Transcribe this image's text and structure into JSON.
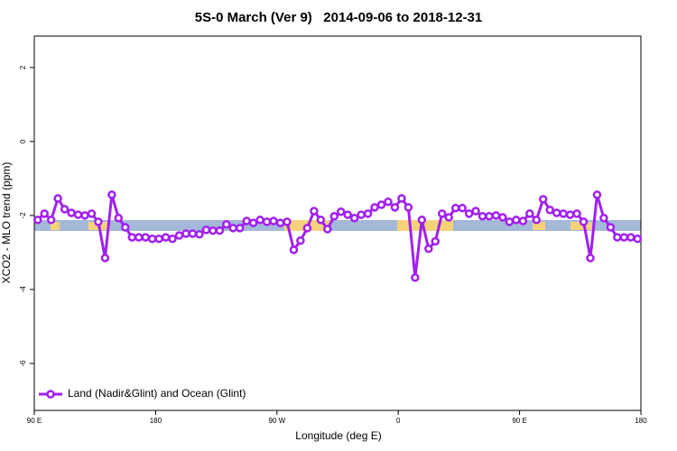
{
  "chart_data": {
    "type": "line",
    "title": "5S-0 March (Ver 9)   2014-09-06 to 2018-12-31",
    "x_label": "Longitude (deg E)",
    "y_label": "XCO2 - MLO trend (ppm)",
    "xlim": [
      90,
      540
    ],
    "ylim": [
      -7.27,
      2.85
    ],
    "xticks": [
      {
        "value": 90,
        "label": "90 E"
      },
      180,
      {
        "value": 270,
        "label": "90 W"
      },
      {
        "value": 360,
        "label": "0"
      },
      {
        "value": 450,
        "label": "90 E"
      },
      {
        "value": 540,
        "label": "180"
      }
    ],
    "yticks": [
      -6,
      -4,
      -2,
      0,
      2
    ],
    "legend": "bottom-left",
    "x": [
      92.5,
      97.5,
      102.5,
      107.5,
      112.5,
      117.5,
      122.5,
      127.5,
      132.5,
      137.5,
      142.5,
      147.5,
      152.5,
      157.5,
      162.5,
      167.5,
      172.5,
      177.5,
      182.5,
      187.5,
      192.5,
      197.5,
      202.5,
      207.5,
      212.5,
      217.5,
      222.5,
      227.5,
      232.5,
      237.5,
      242.5,
      247.5,
      252.5,
      257.5,
      262.5,
      267.5,
      272.5,
      277.5,
      282.5,
      287.5,
      292.5,
      297.5,
      302.5,
      307.5,
      312.5,
      317.5,
      322.5,
      327.5,
      332.5,
      337.5,
      342.5,
      347.5,
      352.5,
      357.5,
      362.5,
      367.5,
      372.5,
      377.5,
      382.5,
      387.5,
      392.5,
      397.5,
      402.5,
      407.5,
      412.5,
      417.5,
      422.5,
      427.5,
      432.5,
      437.5,
      442.5,
      447.5,
      452.5,
      457.5,
      462.5,
      467.5,
      472.5,
      477.5,
      482.5,
      487.5,
      492.5,
      497.5,
      502.5,
      507.5,
      512.5,
      517.5,
      522.5,
      527.5,
      532.5,
      537.5
    ],
    "series": [
      {
        "name": "Land (Nadir&Glint) and Ocean (Glint)",
        "color": "#a020f0",
        "values": [
          -2.12,
          -1.95,
          -2.12,
          -1.54,
          -1.83,
          -1.93,
          -1.98,
          -2.0,
          -1.95,
          -2.17,
          -3.15,
          -1.44,
          -2.07,
          -2.32,
          -2.59,
          -2.59,
          -2.59,
          -2.63,
          -2.63,
          -2.59,
          -2.63,
          -2.54,
          -2.49,
          -2.49,
          -2.51,
          -2.39,
          -2.41,
          -2.41,
          -2.24,
          -2.34,
          -2.34,
          -2.15,
          -2.2,
          -2.12,
          -2.17,
          -2.15,
          -2.2,
          -2.17,
          -2.93,
          -2.68,
          -2.34,
          -1.88,
          -2.12,
          -2.37,
          -2.02,
          -1.9,
          -1.98,
          -2.07,
          -1.98,
          -1.95,
          -1.78,
          -1.71,
          -1.63,
          -1.78,
          -1.54,
          -1.78,
          -3.68,
          -2.12,
          -2.9,
          -2.7,
          -1.95,
          -2.05,
          -1.8,
          -1.8,
          -1.95,
          -1.88,
          -2.02,
          -2.02,
          -2.0,
          -2.05,
          -2.17,
          -2.12,
          -2.15,
          -1.95,
          -2.12,
          -1.56,
          -1.85,
          -1.93,
          -1.95,
          -1.98,
          -1.95,
          -2.17,
          -3.15,
          -1.44,
          -2.07,
          -2.32,
          -2.59,
          -2.59,
          -2.59,
          -2.63
        ]
      }
    ]
  }
}
